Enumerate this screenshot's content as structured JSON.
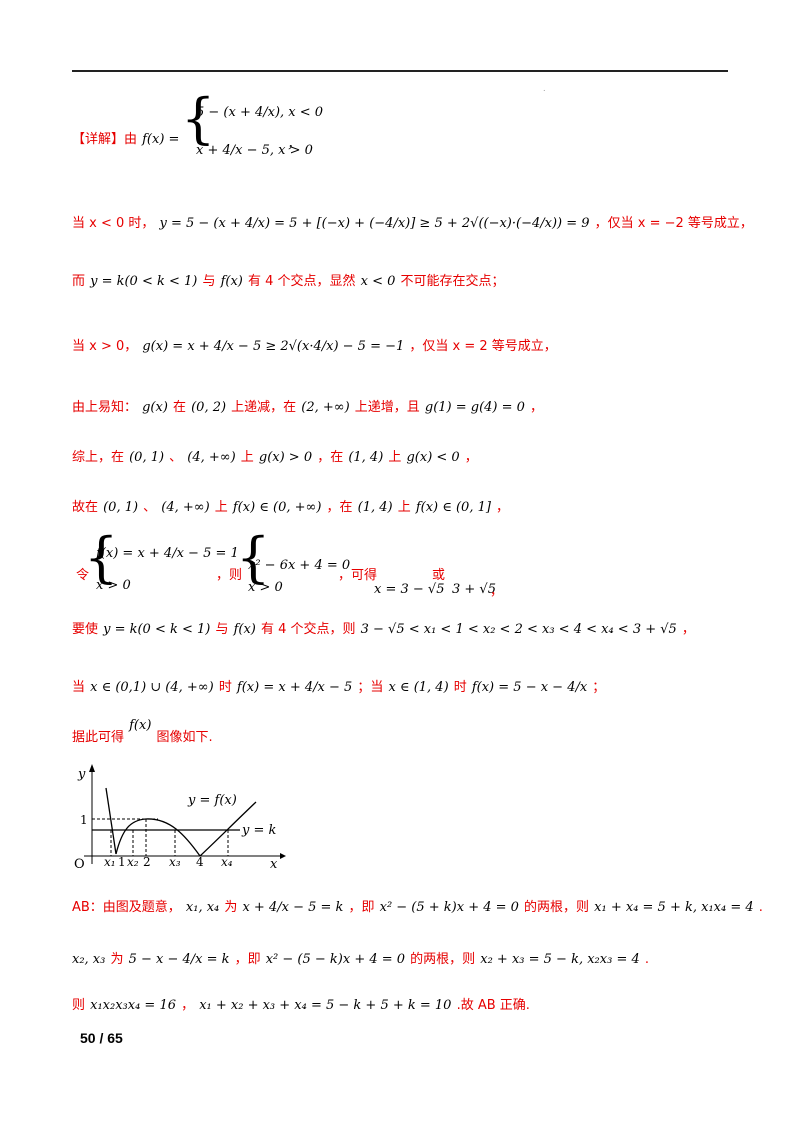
{
  "line1": {
    "label": "【详解】由",
    "fx": "f(x) =",
    "case1": "5 − (x + 4/x), x < 0",
    "case2": "x + 4/x − 5, x > 0",
    "tail": "，"
  },
  "line2": {
    "prefix": "当 x < 0 时，",
    "expr": "y = 5 − (x + 4/x) = 5 + [(−x) + (−4/x)] ≥ 5 + 2√((−x)·(−4/x)) = 9",
    "suffix": "，仅当 x = −2 等号成立，"
  },
  "line3": {
    "p1": "而",
    "m1": "y = k(0 < k < 1)",
    "p2": "与",
    "m2": "f(x)",
    "p3": "有 4 个交点，显然",
    "m3": "x < 0",
    "p4": "不可能存在交点；"
  },
  "line4": {
    "prefix": "当 x > 0，",
    "expr": "g(x) = x + 4/x − 5 ≥ 2√(x·4/x) − 5 = −1",
    "suffix": "，仅当 x = 2 等号成立，"
  },
  "line5": {
    "p1": "由上易知：",
    "m1": "g(x)",
    "p2": "在",
    "m2": "(0, 2)",
    "p3": "上递减，在",
    "m3": "(2, +∞)",
    "p4": "上递增，且",
    "m4": "g(1) = g(4) = 0",
    "p5": "，"
  },
  "line6": {
    "p1": "综上，在",
    "m1": "(0, 1)",
    "p2": "、",
    "m2": "(4, +∞)",
    "p3": "上",
    "m3": "g(x) > 0",
    "p4": "，在",
    "m4": "(1, 4)",
    "p5": "上",
    "m5": "g(x) < 0",
    "p6": "，"
  },
  "line7": {
    "p1": "故在",
    "m1": "(0, 1)",
    "p2": "、",
    "m2": "(4, +∞)",
    "p3": "上",
    "m3": "f(x) ∈ (0, +∞)",
    "p4": "，在",
    "m4": "(1, 4)",
    "p5": "上",
    "m5": "f(x) ∈ (0, 1]",
    "p6": "，"
  },
  "line8": {
    "p1": "令",
    "sys1a": "f(x) = x + 4/x − 5 = 1",
    "sys1b": "x > 0",
    "p2": "，则",
    "sys2a": "x² − 6x + 4 = 0",
    "sys2b": "x > 0",
    "p3": "，可得",
    "sol1": "x = 3 − √5",
    "p4": "或",
    "sol2": "3 + √5",
    "p5": "，"
  },
  "line9": {
    "p1": "要使",
    "m1": "y = k(0 < k < 1)",
    "p2": "与",
    "m2": "f(x)",
    "p3": "有 4 个交点，则",
    "m3": "3 − √5 < x₁ < 1 < x₂ < 2 < x₃ < 4 < x₄ < 3 + √5",
    "p4": "，"
  },
  "line10": {
    "p1": "当",
    "m1": "x ∈ (0,1) ∪ (4, +∞)",
    "p2": "时",
    "m2": "f(x) = x + 4/x − 5",
    "p3": "；当",
    "m3": "x ∈ (1, 4)",
    "p4": "时",
    "m4": "f(x) = 5 − x − 4/x",
    "p5": "；"
  },
  "line11": {
    "p1": "据此可得",
    "m1": "f(x)",
    "p2": "图像如下."
  },
  "graph": {
    "y_axis": "y",
    "x_axis": "x",
    "origin": "O",
    "one_y": "1",
    "fx_label": "y = f(x)",
    "k_label": "y = k",
    "ticks": [
      "x₁",
      "1",
      "x₂",
      "2",
      "x₃",
      "4",
      "x₄"
    ]
  },
  "line12": {
    "p1": "AB：由图及题意，",
    "m1": "x₁, x₄",
    "p2": "为",
    "m2": "x + 4/x − 5 = k",
    "p3": "，即",
    "m3": "x² − (5 + k)x + 4 = 0",
    "p4": "的两根，则",
    "m4": "x₁ + x₄ = 5 + k, x₁x₄ = 4",
    "p5": "."
  },
  "line13": {
    "m1": "x₂, x₃",
    "p1": "为",
    "m2": "5 − x − 4/x = k",
    "p2": "，即",
    "m3": "x² − (5 − k)x + 4 = 0",
    "p3": "的两根，则",
    "m4": "x₂ + x₃ = 5 − k, x₂x₃ = 4",
    "p4": "."
  },
  "line14": {
    "p1": "则",
    "m1": "x₁x₂x₃x₄ = 16",
    "p2": "，",
    "m2": "x₁ + x₂ + x₃ + x₄ = 5 − k + 5 + k = 10",
    "p3": ".故 AB 正确."
  },
  "page": {
    "current": "50",
    "sep": "/",
    "total": "65"
  }
}
